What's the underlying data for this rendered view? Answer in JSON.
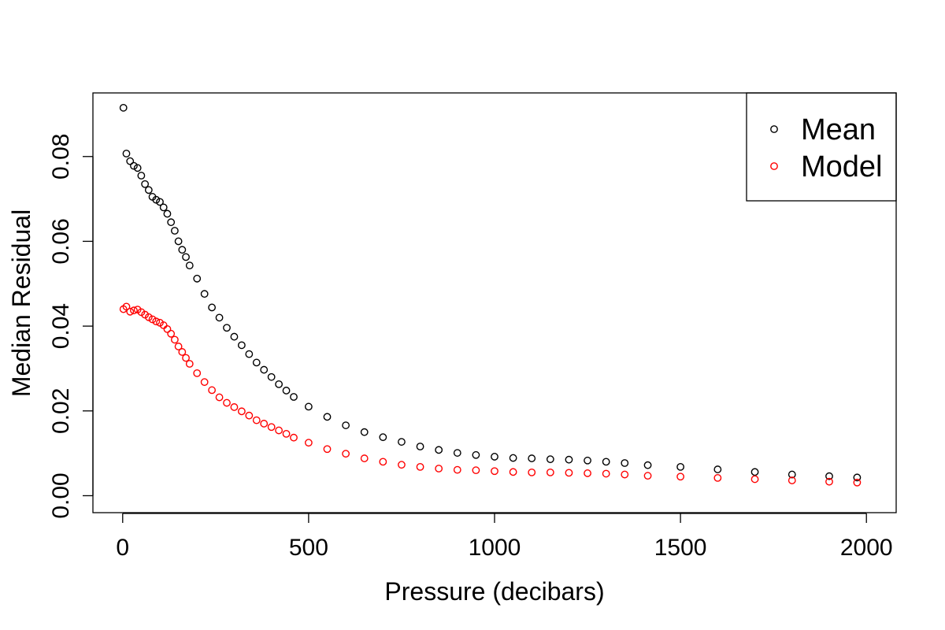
{
  "chart_data": {
    "type": "scatter",
    "title": "",
    "xlabel": "Pressure (decibars)",
    "ylabel": "Median Residual",
    "xlim": [
      -80,
      2080
    ],
    "ylim": [
      -0.004,
      0.095
    ],
    "x_ticks": [
      0,
      500,
      1000,
      1500,
      2000
    ],
    "x_tick_labels": [
      "0",
      "500",
      "1000",
      "1500",
      "2000"
    ],
    "y_ticks": [
      0.0,
      0.02,
      0.04,
      0.06,
      0.08
    ],
    "y_tick_labels": [
      "0.00",
      "0.02",
      "0.04",
      "0.06",
      "0.08"
    ],
    "grid": false,
    "legend_position": "top-right",
    "series": [
      {
        "name": "Mean",
        "color": "#000000",
        "x": [
          2,
          10,
          20,
          30,
          40,
          50,
          60,
          70,
          80,
          90,
          100,
          110,
          120,
          130,
          140,
          150,
          160,
          170,
          180,
          200,
          220,
          240,
          260,
          280,
          300,
          320,
          340,
          360,
          380,
          400,
          420,
          440,
          460,
          500,
          550,
          600,
          650,
          700,
          750,
          800,
          850,
          900,
          950,
          1000,
          1050,
          1100,
          1150,
          1200,
          1250,
          1300,
          1350,
          1412,
          1500,
          1600,
          1700,
          1800,
          1900,
          1975
        ],
        "y": [
          0.0915,
          0.0807,
          0.0789,
          0.0778,
          0.0773,
          0.0755,
          0.0735,
          0.0721,
          0.0705,
          0.0698,
          0.0693,
          0.068,
          0.0665,
          0.0645,
          0.0625,
          0.06,
          0.058,
          0.0563,
          0.0543,
          0.0512,
          0.0476,
          0.0444,
          0.042,
          0.0396,
          0.0375,
          0.0355,
          0.0334,
          0.0314,
          0.0297,
          0.028,
          0.0263,
          0.0248,
          0.0233,
          0.021,
          0.0186,
          0.0166,
          0.015,
          0.0138,
          0.0127,
          0.0116,
          0.0108,
          0.0101,
          0.0096,
          0.0092,
          0.0089,
          0.0088,
          0.0086,
          0.0085,
          0.0083,
          0.008,
          0.0077,
          0.0072,
          0.0068,
          0.0062,
          0.0056,
          0.005,
          0.0046,
          0.0043
        ]
      },
      {
        "name": "Model",
        "color": "#ff0000",
        "x": [
          2,
          10,
          20,
          30,
          40,
          50,
          60,
          70,
          80,
          90,
          100,
          110,
          120,
          130,
          140,
          150,
          160,
          170,
          180,
          200,
          220,
          240,
          260,
          280,
          300,
          320,
          340,
          360,
          380,
          400,
          420,
          440,
          460,
          500,
          550,
          600,
          650,
          700,
          750,
          800,
          850,
          900,
          950,
          1000,
          1050,
          1100,
          1150,
          1200,
          1250,
          1300,
          1350,
          1412,
          1500,
          1600,
          1700,
          1800,
          1900,
          1975
        ],
        "y": [
          0.044,
          0.0446,
          0.0434,
          0.0437,
          0.0439,
          0.0433,
          0.0427,
          0.0421,
          0.0416,
          0.0411,
          0.0408,
          0.0402,
          0.0393,
          0.0382,
          0.0368,
          0.0352,
          0.0339,
          0.0325,
          0.0311,
          0.0289,
          0.0268,
          0.0249,
          0.0232,
          0.0219,
          0.0209,
          0.0199,
          0.0189,
          0.0178,
          0.017,
          0.0162,
          0.0154,
          0.0146,
          0.0137,
          0.0125,
          0.011,
          0.0099,
          0.0088,
          0.008,
          0.0073,
          0.0068,
          0.0064,
          0.0061,
          0.006,
          0.0058,
          0.0056,
          0.0055,
          0.0055,
          0.0054,
          0.0053,
          0.0052,
          0.005,
          0.0047,
          0.0045,
          0.0042,
          0.0039,
          0.0036,
          0.0033,
          0.0031
        ]
      }
    ]
  }
}
